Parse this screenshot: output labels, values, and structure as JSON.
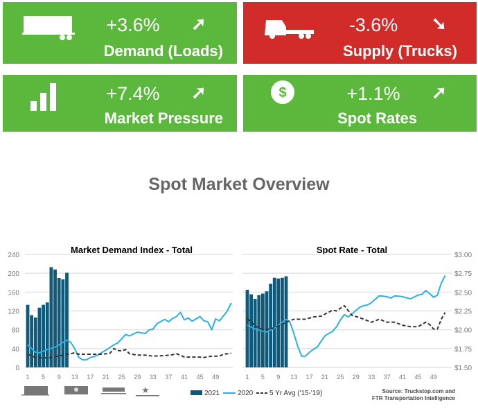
{
  "kpis": [
    {
      "value": "+3.6%",
      "label": "Demand (Loads)",
      "color": "#5cb83c",
      "icon": "trailer-icon",
      "trend": "up"
    },
    {
      "value": "-3.6%",
      "label": "Supply (Trucks)",
      "color": "#d22c2a",
      "icon": "truck-icon",
      "trend": "down"
    },
    {
      "value": "+7.4%",
      "label": "Market Pressure",
      "color": "#5cb83c",
      "icon": "bar-signal-icon",
      "trend": "up"
    },
    {
      "value": "+1.1%",
      "label": "Spot Rates",
      "color": "#5cb83c",
      "icon": "dollar-icon",
      "trend": "up"
    }
  ],
  "title": "Spot Market Overview",
  "legend": {
    "s2021": "2021",
    "s2020": "2020",
    "avg": "5 Yr Avg ('15-'19)"
  },
  "source": [
    "Source: Truckstop.com and",
    "FTR Transportation Intelligence"
  ],
  "chart_data": [
    {
      "type": "bar+line",
      "title": "Market Demand Index - Total",
      "ylim": [
        0,
        240
      ],
      "yticks": [
        "0",
        "40",
        "80",
        "120",
        "160",
        "200",
        "240"
      ],
      "yvals": [
        0,
        40,
        80,
        120,
        160,
        200,
        240
      ],
      "xticks": [
        1,
        5,
        9,
        13,
        17,
        21,
        25,
        29,
        33,
        37,
        41,
        45,
        49
      ],
      "series": [
        {
          "name": "2021",
          "type": "bar",
          "color": "#0f5a7a",
          "weeks": [
            1,
            2,
            3,
            4,
            5,
            6,
            7,
            8,
            9,
            10,
            11
          ],
          "values": [
            133,
            111,
            106,
            127,
            133,
            138,
            213,
            208,
            190,
            187,
            201
          ]
        },
        {
          "name": "2020",
          "type": "line",
          "color": "#29b0e6",
          "points": [
            [
              1,
              48
            ],
            [
              3,
              32
            ],
            [
              4,
              31
            ],
            [
              6,
              38
            ],
            [
              8,
              43
            ],
            [
              10,
              53
            ],
            [
              11,
              58
            ],
            [
              12,
              53
            ],
            [
              13,
              40
            ],
            [
              14,
              22
            ],
            [
              15,
              16
            ],
            [
              16,
              16
            ],
            [
              17,
              21
            ],
            [
              18,
              23
            ],
            [
              19,
              27
            ],
            [
              21,
              37
            ],
            [
              23,
              48
            ],
            [
              24,
              52
            ],
            [
              26,
              70
            ],
            [
              27,
              67
            ],
            [
              29,
              75
            ],
            [
              31,
              72
            ],
            [
              32,
              80
            ],
            [
              33,
              81
            ],
            [
              34,
              93
            ],
            [
              36,
              102
            ],
            [
              37,
              97
            ],
            [
              38,
              104
            ],
            [
              39,
              108
            ],
            [
              40,
              117
            ],
            [
              41,
              101
            ],
            [
              42,
              105
            ],
            [
              43,
              98
            ],
            [
              45,
              108
            ],
            [
              46,
              99
            ],
            [
              47,
              97
            ],
            [
              48,
              80
            ],
            [
              49,
              103
            ],
            [
              50,
              99
            ],
            [
              52,
              120
            ],
            [
              53,
              137
            ]
          ]
        },
        {
          "name": "5 Yr Avg ('15-'19)",
          "type": "dashed",
          "color": "#333333",
          "points": [
            [
              1,
              28
            ],
            [
              3,
              21
            ],
            [
              5,
              20
            ],
            [
              7,
              21
            ],
            [
              10,
              26
            ],
            [
              12,
              29
            ],
            [
              13,
              31
            ],
            [
              14,
              28
            ],
            [
              20,
              28
            ],
            [
              22,
              30
            ],
            [
              23,
              40
            ],
            [
              24,
              36
            ],
            [
              25,
              35
            ],
            [
              26,
              38
            ],
            [
              27,
              29
            ],
            [
              29,
              26
            ],
            [
              31,
              26
            ],
            [
              33,
              24
            ],
            [
              36,
              25
            ],
            [
              38,
              27
            ],
            [
              39,
              29
            ],
            [
              40,
              26
            ],
            [
              41,
              22
            ],
            [
              45,
              22
            ],
            [
              46,
              21
            ],
            [
              48,
              24
            ],
            [
              50,
              24
            ],
            [
              51,
              28
            ],
            [
              53,
              30
            ]
          ]
        }
      ]
    },
    {
      "type": "bar+line",
      "title": "Spot Rate - Total",
      "ylim": [
        1.5,
        3.0
      ],
      "yticks": [
        "$1.50",
        "$1.75",
        "$2.00",
        "$2.25",
        "$2.50",
        "$2.75",
        "$3.00"
      ],
      "yvals": [
        1.5,
        1.75,
        2.0,
        2.25,
        2.5,
        2.75,
        3.0
      ],
      "xticks": [
        1,
        5,
        9,
        13,
        17,
        21,
        25,
        29,
        33,
        37,
        41,
        45,
        49
      ],
      "series": [
        {
          "name": "2021",
          "type": "bar",
          "color": "#0f5a7a",
          "weeks": [
            1,
            2,
            3,
            4,
            5,
            6,
            7,
            8,
            9,
            10,
            11
          ],
          "values": [
            2.53,
            2.47,
            2.41,
            2.46,
            2.48,
            2.51,
            2.61,
            2.69,
            2.68,
            2.69,
            2.71
          ]
        },
        {
          "name": "2020",
          "type": "line",
          "color": "#29b0e6",
          "points": [
            [
              1,
              2.06
            ],
            [
              3,
              2.01
            ],
            [
              5,
              1.98
            ],
            [
              6,
              1.97
            ],
            [
              8,
              2.02
            ],
            [
              10,
              2.1
            ],
            [
              11,
              2.14
            ],
            [
              12,
              2.1
            ],
            [
              13,
              1.95
            ],
            [
              14,
              1.78
            ],
            [
              15,
              1.65
            ],
            [
              16,
              1.65
            ],
            [
              17,
              1.7
            ],
            [
              18,
              1.74
            ],
            [
              19,
              1.77
            ],
            [
              21,
              1.92
            ],
            [
              23,
              1.98
            ],
            [
              24,
              2.04
            ],
            [
              25,
              2.13
            ],
            [
              26,
              2.2
            ],
            [
              27,
              2.17
            ],
            [
              28,
              2.21
            ],
            [
              30,
              2.3
            ],
            [
              31,
              2.32
            ],
            [
              32,
              2.33
            ],
            [
              33,
              2.36
            ],
            [
              35,
              2.45
            ],
            [
              37,
              2.44
            ],
            [
              38,
              2.42
            ],
            [
              39,
              2.45
            ],
            [
              41,
              2.44
            ],
            [
              43,
              2.41
            ],
            [
              45,
              2.46
            ],
            [
              46,
              2.47
            ],
            [
              47,
              2.52
            ],
            [
              48,
              2.48
            ],
            [
              49,
              2.43
            ],
            [
              50,
              2.46
            ],
            [
              51,
              2.62
            ],
            [
              52,
              2.72
            ]
          ]
        },
        {
          "name": "5 Yr Avg ('15-'19)",
          "type": "dashed",
          "color": "#333333",
          "points": [
            [
              1,
              2.15
            ],
            [
              3,
              2.05
            ],
            [
              5,
              2.0
            ],
            [
              7,
              2.01
            ],
            [
              9,
              2.05
            ],
            [
              11,
              2.1
            ],
            [
              13,
              2.14
            ],
            [
              16,
              2.14
            ],
            [
              18,
              2.17
            ],
            [
              20,
              2.18
            ],
            [
              23,
              2.26
            ],
            [
              24,
              2.25
            ],
            [
              26,
              2.32
            ],
            [
              28,
              2.19
            ],
            [
              30,
              2.16
            ],
            [
              33,
              2.1
            ],
            [
              35,
              2.14
            ],
            [
              37,
              2.1
            ],
            [
              39,
              2.1
            ],
            [
              41,
              2.06
            ],
            [
              43,
              2.04
            ],
            [
              45,
              2.04
            ],
            [
              47,
              2.1
            ],
            [
              48,
              2.07
            ],
            [
              49,
              2.01
            ],
            [
              50,
              2.01
            ],
            [
              51,
              2.14
            ],
            [
              52,
              2.23
            ]
          ]
        }
      ]
    }
  ]
}
